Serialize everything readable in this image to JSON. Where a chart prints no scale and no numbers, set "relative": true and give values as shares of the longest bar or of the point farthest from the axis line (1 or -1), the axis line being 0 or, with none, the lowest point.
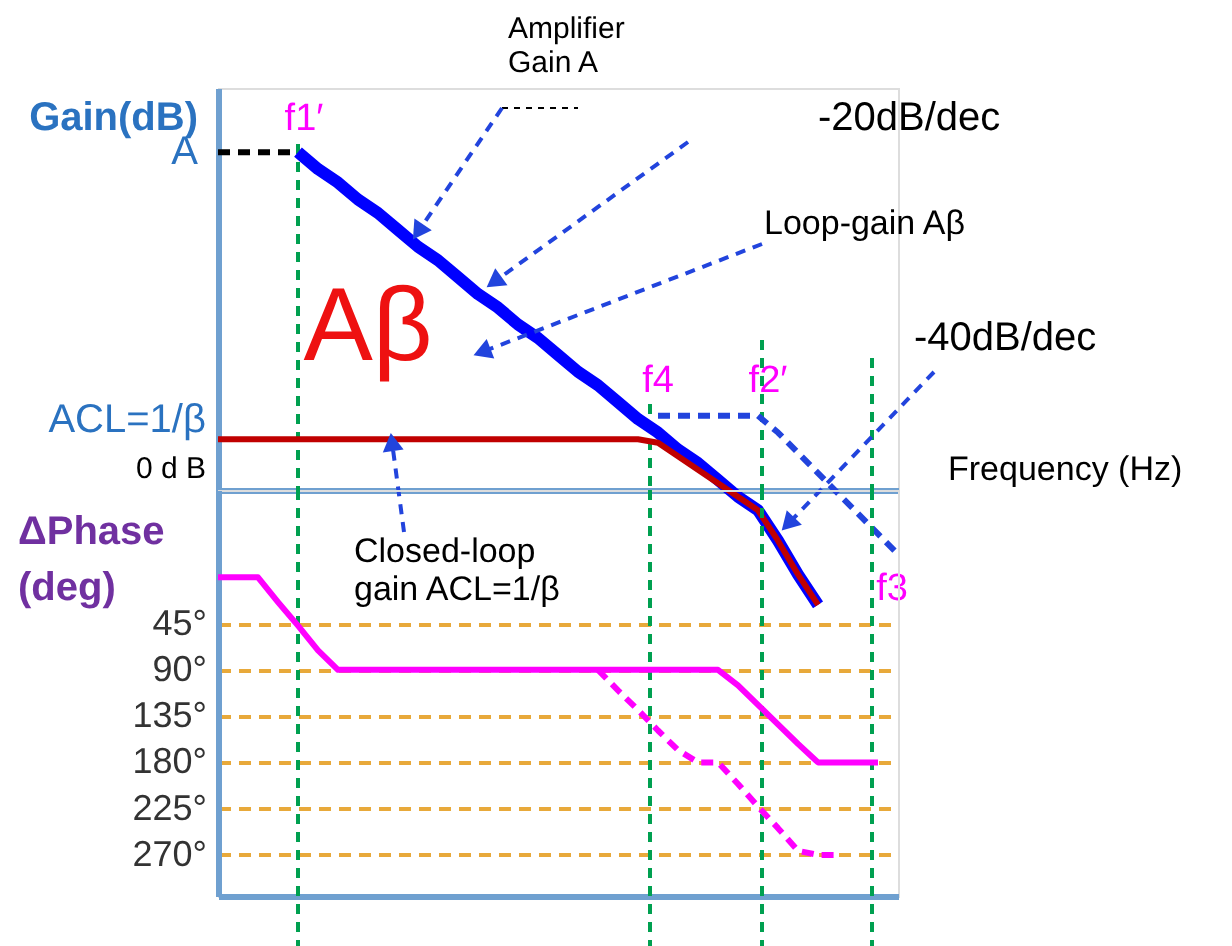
{
  "chart_data": [
    {
      "type": "line",
      "relative": true,
      "ylabel": "Gain(dB)",
      "xlabel": "Frequency (Hz)",
      "tick_labels": false,
      "categories": [
        null,
        null,
        null,
        null,
        null,
        null,
        null,
        null,
        null,
        null,
        null,
        null,
        null,
        null,
        null,
        null,
        null,
        null,
        null,
        null,
        null,
        null,
        null,
        null,
        null,
        null,
        null,
        null,
        null,
        null,
        null,
        null,
        null,
        null,
        null
      ],
      "series": [
        {
          "color": "#000000",
          "line_style": "dashed",
          "values": [
            1,
            1,
            1,
            1,
            1,
            null,
            null,
            null,
            null,
            null,
            null,
            null,
            null,
            null,
            null,
            null,
            null,
            null,
            null,
            null,
            null,
            null,
            null,
            null,
            null,
            null,
            null,
            null,
            null,
            null,
            null,
            null,
            null,
            null,
            null
          ]
        },
        {
          "color": "#0000ff",
          "values": [
            null,
            null,
            null,
            null,
            1.0,
            0.95,
            0.91,
            0.86,
            0.82,
            0.77,
            0.72,
            0.68,
            0.63,
            0.58,
            0.54,
            0.49,
            0.45,
            0.4,
            0.35,
            0.31,
            0.26,
            0.21,
            0.17,
            0.12,
            0.08,
            0.03,
            -0.02,
            -0.06,
            -0.15,
            -0.25,
            -0.34,
            null,
            null,
            null,
            null
          ]
        },
        {
          "color": "#c00000",
          "values": [
            0.15,
            0.15,
            0.15,
            0.15,
            0.15,
            0.15,
            0.15,
            0.15,
            0.15,
            0.15,
            0.15,
            0.15,
            0.15,
            0.15,
            0.15,
            0.15,
            0.15,
            0.15,
            0.15,
            0.15,
            0.15,
            0.15,
            0.14,
            0.1,
            0.06,
            0.02,
            -0.02,
            -0.06,
            -0.15,
            -0.25,
            -0.34,
            null,
            null,
            null,
            null
          ]
        },
        {
          "color": "#2244dd",
          "line_style": "dashed",
          "values": [
            null,
            null,
            null,
            null,
            null,
            null,
            null,
            null,
            null,
            null,
            null,
            null,
            null,
            null,
            null,
            null,
            null,
            null,
            null,
            null,
            null,
            null,
            0.22,
            0.22,
            0.22,
            0.22,
            0.22,
            0.22,
            0.17,
            0.11,
            0.05,
            -0.01,
            -0.07,
            -0.13,
            -0.19
          ]
        }
      ],
      "annotations": [
        "f1′",
        "f4",
        "f2′",
        "f3",
        "A",
        "ACL=1/β",
        "0 d B",
        "Amplifier\nGain A",
        "-20dB/dec",
        "Loop-gain Aβ",
        "-40dB/dec",
        "Aβ",
        "Closed-loop\ngain ACL=1/β"
      ]
    },
    {
      "type": "line",
      "ylabel": "ΔPhase\n(deg)",
      "tick_labels": "y",
      "grid": "y",
      "ylim": [
        310,
        -85
      ],
      "yticks": [
        {
          "value": 45,
          "label": "45°"
        },
        {
          "value": 90,
          "label": "90°"
        },
        {
          "value": 135,
          "label": "135°"
        },
        {
          "value": 180,
          "label": "180°"
        },
        {
          "value": 225,
          "label": "225°"
        },
        {
          "value": 270,
          "label": "270°"
        }
      ],
      "categories": [
        null,
        null,
        null,
        null,
        null,
        null,
        null,
        null,
        null,
        null,
        null,
        null,
        null,
        null,
        null,
        null,
        null,
        null,
        null,
        null,
        null,
        null,
        null,
        null,
        null,
        null,
        null,
        null,
        null,
        null,
        null,
        null,
        null,
        null,
        null
      ],
      "series": [
        {
          "color": "#ff00ff",
          "values": [
            0,
            0,
            0,
            24,
            47,
            71,
            90,
            90,
            90,
            90,
            90,
            90,
            90,
            90,
            90,
            90,
            90,
            90,
            90,
            90,
            90,
            90,
            90,
            90,
            90,
            90,
            105,
            124,
            143,
            162,
            180,
            180,
            180,
            180,
            null
          ]
        },
        {
          "color": "#ff00ff",
          "line_style": "dashed",
          "values": [
            null,
            null,
            null,
            null,
            null,
            null,
            null,
            null,
            null,
            null,
            null,
            null,
            null,
            null,
            null,
            null,
            null,
            null,
            null,
            90,
            110,
            129,
            149,
            168,
            180,
            180,
            201,
            223,
            244,
            266,
            270,
            270,
            null,
            null,
            null
          ]
        }
      ]
    }
  ]
}
